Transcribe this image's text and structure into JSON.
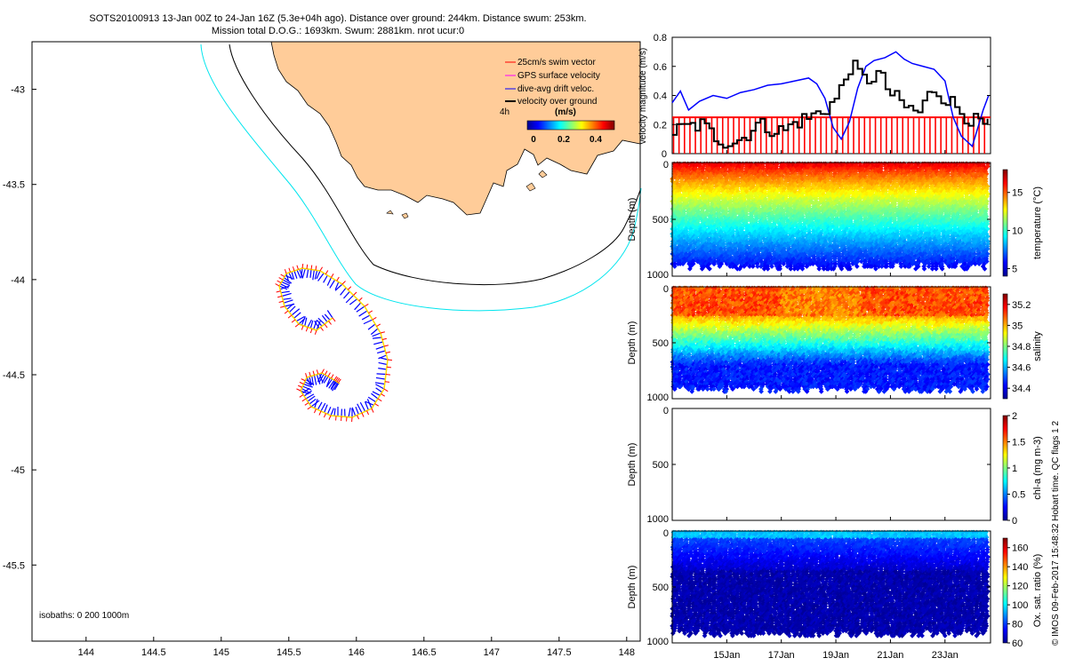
{
  "header": {
    "title_line1": "SOTS20100913 13-Jan 00Z to 24-Jan 16Z (5.3e+04h ago). Distance over ground: 244km. Distance swum: 253km.",
    "title_line2": "Mission total D.O.G.: 1693km. Swum: 2881km. nrot ucur:0"
  },
  "colors": {
    "land": "#FFCC99",
    "coast": "#000000",
    "iso200": "#000000",
    "iso1000": "#00E5EE",
    "swim": "#FF0000",
    "gps": "#FF00FF",
    "dive": "#0000FF",
    "track": "#FFDD00",
    "ground": "#000000"
  },
  "map": {
    "xlim": [
      143.6,
      148.1
    ],
    "ylim": [
      -45.9,
      -42.75
    ],
    "xticks": [
      "144",
      "144.5",
      "145",
      "145.5",
      "146",
      "146.5",
      "147",
      "147.5",
      "148"
    ],
    "yticks": [
      "-43",
      "-43.5",
      "-44",
      "-44.5",
      "-45",
      "-45.5"
    ],
    "legend": {
      "items": [
        {
          "label": "25cm/s swim vector",
          "color": "#FF0000"
        },
        {
          "label": "GPS surface velocity",
          "color": "#FF00FF"
        },
        {
          "label": "dive-avg drift veloc.",
          "color": "#0000FF"
        },
        {
          "label": "velocity over ground",
          "color": "#000000"
        }
      ],
      "time_label": "4h",
      "unit_label": "(m/s)",
      "cbar_ticks": [
        "0",
        "0.2",
        "0.4"
      ]
    },
    "isobath_label": "isobaths: 0   200   1000m"
  },
  "right_panels": {
    "date_ticks": [
      "15Jan",
      "17Jan",
      "19Jan",
      "21Jan",
      "23Jan"
    ],
    "velocity": {
      "ylabel": "velocity magnitude (m/s)",
      "yticks": [
        "0",
        "0.2",
        "0.4",
        "0.6",
        "0.8"
      ]
    },
    "depth_label": "Depth (m)",
    "depth_ticks": [
      "0",
      "500",
      "1000"
    ],
    "temperature": {
      "clabel": "temperature (°C)",
      "cticks": [
        "5",
        "10",
        "15"
      ]
    },
    "salinity": {
      "clabel": "salinity",
      "cticks": [
        "34.4",
        "34.6",
        "34.8",
        "35",
        "35.2"
      ]
    },
    "chla": {
      "clabel": "chl-a (mg m-3)",
      "cticks": [
        "0",
        "0.5",
        "1",
        "1.5",
        "2"
      ]
    },
    "oxygen": {
      "clabel": "Ox. sat. ratio (%)",
      "cticks": [
        "60",
        "80",
        "100",
        "120",
        "140",
        "160"
      ]
    },
    "side_note": "© IMOS 09-Feb-2017 15:48:32 Hobart time. QC flags 1  2"
  },
  "chart_data": [
    {
      "type": "line",
      "title": "velocity magnitude",
      "ylabel": "velocity magnitude (m/s)",
      "ylim": [
        0,
        0.8
      ],
      "x_range_days": [
        "13-Jan 00Z",
        "24-Jan 16Z"
      ],
      "series": [
        {
          "name": "dive-avg drift veloc.",
          "x": [
            13.0,
            13.3,
            13.6,
            14.0,
            14.5,
            15.0,
            15.5,
            16.0,
            16.5,
            17.0,
            17.5,
            18.0,
            18.3,
            18.6,
            18.9,
            19.2,
            19.5,
            19.8,
            20.1,
            20.4,
            20.8,
            21.2,
            21.5,
            21.8,
            22.2,
            22.6,
            23.0,
            23.3,
            23.6,
            24.0,
            24.4,
            24.6
          ],
          "values": [
            0.35,
            0.43,
            0.3,
            0.36,
            0.4,
            0.38,
            0.42,
            0.44,
            0.47,
            0.48,
            0.5,
            0.52,
            0.48,
            0.38,
            0.18,
            0.1,
            0.22,
            0.45,
            0.6,
            0.64,
            0.66,
            0.7,
            0.65,
            0.62,
            0.6,
            0.58,
            0.5,
            0.25,
            0.12,
            0.05,
            0.3,
            0.4
          ]
        },
        {
          "name": "velocity over ground",
          "x": [
            13.0,
            13.5,
            14.0,
            14.5,
            15.0,
            15.5,
            16.0,
            16.5,
            17.0,
            17.5,
            18.0,
            18.5,
            19.0,
            19.5,
            20.0,
            20.5,
            21.0,
            21.5,
            22.0,
            22.5,
            23.0,
            23.5,
            24.0,
            24.6
          ],
          "values": [
            0.15,
            0.18,
            0.2,
            0.12,
            0.08,
            0.1,
            0.2,
            0.18,
            0.15,
            0.22,
            0.25,
            0.3,
            0.38,
            0.62,
            0.5,
            0.55,
            0.4,
            0.32,
            0.28,
            0.45,
            0.38,
            0.3,
            0.22,
            0.18
          ]
        },
        {
          "name": "25cm/s swim vector",
          "x": [
            13.0,
            24.6
          ],
          "values": [
            0.25,
            0.25
          ]
        }
      ]
    },
    {
      "type": "scatter",
      "title": "temperature",
      "xlim": [
        "13-Jan",
        "24-Jan"
      ],
      "ylim": [
        0,
        1000
      ],
      "color_range": [
        4,
        18
      ],
      "surface_value": 17,
      "deep_value": 5
    },
    {
      "type": "scatter",
      "title": "salinity",
      "xlim": [
        "13-Jan",
        "24-Jan"
      ],
      "ylim": [
        0,
        1000
      ],
      "color_range": [
        34.3,
        35.3
      ],
      "surface_value": 35.1,
      "deep_value": 34.45
    },
    {
      "type": "scatter",
      "title": "chl-a",
      "xlim": [
        "13-Jan",
        "24-Jan"
      ],
      "ylim": [
        0,
        1000
      ],
      "color_range": [
        0,
        2
      ]
    },
    {
      "type": "scatter",
      "title": "oxygen saturation",
      "xlim": [
        "13-Jan",
        "24-Jan"
      ],
      "ylim": [
        0,
        1000
      ],
      "color_range": [
        60,
        170
      ],
      "surface_value": 95,
      "deep_value": 65
    }
  ]
}
